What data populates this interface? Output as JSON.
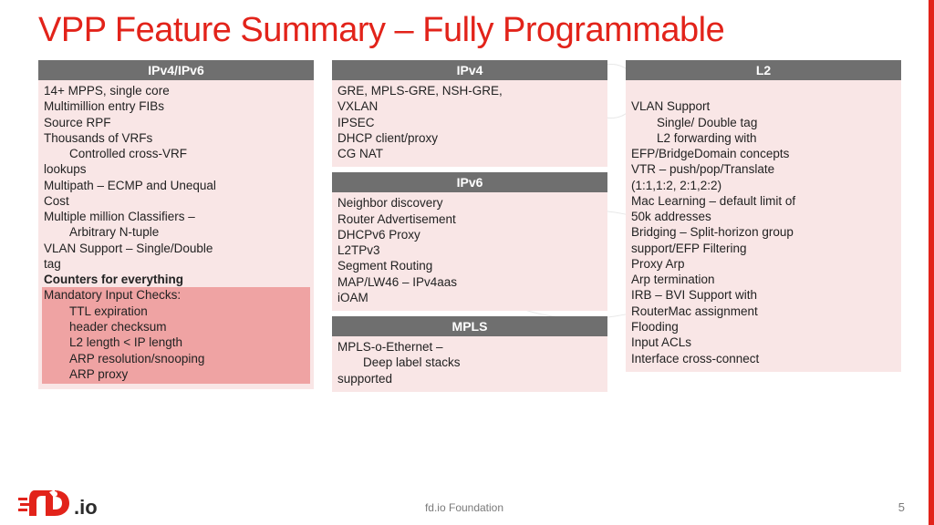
{
  "title": "VPP Feature Summary – Fully Programmable",
  "colors": {
    "accent": "#e2231a",
    "panel_header_bg": "#6f6f6f",
    "panel_header_fg": "#ffffff",
    "panel_bg": "#f9e6e6",
    "highlight_bg": "#efa3a3",
    "body_text": "#222222",
    "footer_text": "#7a7a7a"
  },
  "columns": [
    {
      "panels": [
        {
          "header": "IPv4/IPv6",
          "lines": [
            {
              "t": "14+ MPPS, single core"
            },
            {
              "t": "Multimillion entry FIBs"
            },
            {
              "t": "Source RPF"
            },
            {
              "t": "Thousands of VRFs"
            },
            {
              "t": "Controlled cross-VRF",
              "indent": true
            },
            {
              "t": "lookups"
            },
            {
              "t": "Multipath – ECMP and Unequal"
            },
            {
              "t": "Cost"
            },
            {
              "t": "Multiple million Classifiers –"
            },
            {
              "t": "Arbitrary N-tuple",
              "indent": true
            },
            {
              "t": "VLAN Support – Single/Double"
            },
            {
              "t": "tag"
            },
            {
              "t": "Counters for everything",
              "bold": true
            },
            {
              "t": "Mandatory Input Checks:",
              "hl": true
            },
            {
              "t": "TTL expiration",
              "indent": true,
              "hl": true
            },
            {
              "t": "header checksum",
              "indent": true,
              "hl": true
            },
            {
              "t": "L2 length < IP length",
              "indent": true,
              "hl": true
            },
            {
              "t": "ARP resolution/snooping",
              "indent": true,
              "hl": true
            },
            {
              "t": "ARP proxy",
              "indent": true,
              "hl": true
            }
          ]
        }
      ]
    },
    {
      "panels": [
        {
          "header": "IPv4",
          "lines": [
            {
              "t": "GRE, MPLS-GRE, NSH-GRE,"
            },
            {
              "t": "VXLAN"
            },
            {
              "t": "IPSEC"
            },
            {
              "t": "DHCP client/proxy"
            },
            {
              "t": "CG NAT"
            }
          ]
        },
        {
          "header": "IPv6",
          "lines": [
            {
              "t": "Neighbor discovery"
            },
            {
              "t": "Router Advertisement"
            },
            {
              "t": "DHCPv6 Proxy"
            },
            {
              "t": "L2TPv3"
            },
            {
              "t": "Segment Routing"
            },
            {
              "t": "MAP/LW46 – IPv4aas"
            },
            {
              "t": "iOAM"
            }
          ]
        },
        {
          "header": "MPLS",
          "lines": [
            {
              "t": "MPLS-o-Ethernet –"
            },
            {
              "t": "Deep label stacks",
              "indent": true
            },
            {
              "t": "supported"
            }
          ]
        }
      ]
    },
    {
      "panels": [
        {
          "header": "L2",
          "lines": [
            {
              "t": " "
            },
            {
              "t": "VLAN Support"
            },
            {
              "t": "Single/ Double tag",
              "indent": true
            },
            {
              "t": "L2 forwarding with",
              "indent": true
            },
            {
              "t": "EFP/BridgeDomain concepts"
            },
            {
              "t": "VTR – push/pop/Translate"
            },
            {
              "t": "(1:1,1:2, 2:1,2:2)"
            },
            {
              "t": "Mac Learning – default limit of"
            },
            {
              "t": "50k addresses"
            },
            {
              "t": "Bridging – Split-horizon group"
            },
            {
              "t": "support/EFP Filtering"
            },
            {
              "t": "Proxy Arp"
            },
            {
              "t": "Arp termination"
            },
            {
              "t": "IRB – BVI Support with"
            },
            {
              "t": "RouterMac assignment"
            },
            {
              "t": "Flooding"
            },
            {
              "t": "Input ACLs"
            },
            {
              "t": "Interface cross-connect"
            }
          ]
        }
      ]
    }
  ],
  "footer": {
    "center": "fd.io Foundation",
    "page": "5",
    "logo_text": ".io"
  }
}
